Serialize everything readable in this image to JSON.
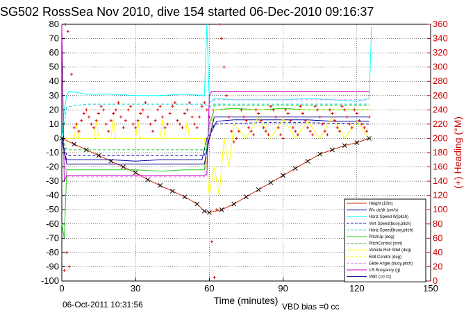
{
  "chart_data": {
    "type": "line",
    "title": "SG502 RossSea Nov 2010, dive 154 started 06-Dec-2010 09:16:37",
    "xlabel": "Time (minutes)",
    "ylabel": "",
    "ylabel_right": "(+) Heading (°M)",
    "xlim": [
      0,
      150
    ],
    "ylim": [
      -100,
      80
    ],
    "ylim_right": [
      0,
      360
    ],
    "x_ticks": [
      0,
      30,
      60,
      90,
      120,
      150
    ],
    "y_ticks": [
      -100,
      -90,
      -80,
      -70,
      -60,
      -50,
      -40,
      -30,
      -20,
      -10,
      0,
      10,
      20,
      30,
      40,
      50,
      60,
      70,
      80
    ],
    "y_right_ticks": [
      0,
      20,
      40,
      60,
      80,
      100,
      120,
      140,
      160,
      180,
      200,
      220,
      240,
      260,
      280,
      300,
      320,
      340,
      360
    ],
    "grid": true,
    "legend_position": "bottom-right",
    "footer_left": "06-Oct-2011 10:31:56",
    "footer_right": "VBD bias =0 cc",
    "colors": {
      "left_axis": "#000000",
      "right_axis": "#cc0000"
    },
    "series": [
      {
        "name": "Height (10m)",
        "color": "#cc2200",
        "style": "solid",
        "x": [
          0,
          5,
          10,
          15,
          20,
          25,
          30,
          35,
          40,
          45,
          50,
          55,
          58,
          60,
          65,
          70,
          75,
          80,
          85,
          90,
          95,
          100,
          105,
          110,
          115,
          120,
          125
        ],
        "y": [
          0,
          -4,
          -8,
          -12,
          -16,
          -20,
          -24,
          -29,
          -33,
          -37,
          -41,
          -46,
          -51,
          -52,
          -50,
          -46,
          -41,
          -36,
          -31,
          -26,
          -21,
          -16,
          -11,
          -8,
          -5,
          -3,
          0
        ]
      },
      {
        "name": "W= dz/dt (cm/s)",
        "color": "#0000aa",
        "style": "solid",
        "x": [
          0,
          1,
          2,
          10,
          20,
          30,
          40,
          50,
          57,
          59,
          61,
          63,
          70,
          80,
          90,
          100,
          110,
          120,
          125
        ],
        "y": [
          0,
          -10,
          -15,
          -15,
          -15,
          -16,
          -15,
          -15,
          -15,
          0,
          5,
          12,
          13,
          13,
          13,
          13,
          12,
          12,
          12
        ]
      },
      {
        "name": "Horiz Speed W(pitch)",
        "color": "#00ffff",
        "style": "solid",
        "x": [
          0,
          1,
          2,
          3,
          10,
          20,
          30,
          40,
          50,
          58,
          59,
          60,
          61,
          62,
          70,
          80,
          90,
          100,
          110,
          120,
          125,
          126
        ],
        "y": [
          0,
          20,
          30,
          33,
          31,
          31,
          30,
          30,
          31,
          30,
          80,
          25,
          26,
          28,
          27,
          27,
          27,
          28,
          27,
          26,
          28,
          78
        ]
      },
      {
        "name": "Vert Speed(buoy,pitch)",
        "color": "#0000aa",
        "style": "dashed",
        "x": [
          0,
          2,
          10,
          30,
          50,
          58,
          60,
          62,
          80,
          100,
          125
        ],
        "y": [
          0,
          -12,
          -12,
          -12,
          -12,
          -12,
          0,
          10,
          11,
          11,
          10
        ]
      },
      {
        "name": "Horiz Speed(buoy,pitch)",
        "color": "#00cccc",
        "style": "dashed",
        "x": [
          0,
          2,
          10,
          30,
          50,
          58,
          60,
          62,
          80,
          100,
          125
        ],
        "y": [
          0,
          22,
          24,
          24,
          24,
          24,
          22,
          24,
          24,
          24,
          24
        ]
      },
      {
        "name": "PitchUp (deg)",
        "color": "#22cc22",
        "style": "solid",
        "x": [
          0,
          1,
          2,
          10,
          20,
          30,
          40,
          50,
          58,
          60,
          62,
          70,
          80,
          90,
          100,
          110,
          120,
          125
        ],
        "y": [
          -60,
          -70,
          -22,
          -22,
          -22,
          -22,
          -23,
          -22,
          -22,
          10,
          20,
          21,
          20,
          21,
          20,
          20,
          20,
          20
        ]
      },
      {
        "name": "PitchControl (mm)",
        "color": "#22cc22",
        "style": "dashed",
        "x": [
          0,
          2,
          10,
          30,
          50,
          58,
          60,
          62,
          80,
          100,
          125
        ],
        "y": [
          0,
          -8,
          -8,
          -8,
          -8,
          -8,
          0,
          23,
          23,
          23,
          23
        ]
      },
      {
        "name": "Vehicle Roll Stbd (deg)",
        "color": "#ffff00",
        "style": "solid",
        "x": [
          0,
          5,
          6,
          7,
          8,
          13,
          14,
          15,
          16,
          20,
          21,
          22,
          23,
          30,
          31,
          32,
          33,
          40,
          41,
          42,
          43,
          50,
          51,
          52,
          53,
          58,
          60,
          62,
          64,
          66,
          68,
          70,
          75,
          80,
          85,
          90,
          95,
          100,
          105,
          110,
          115,
          120,
          125
        ],
        "y": [
          0,
          0,
          10,
          0,
          0,
          0,
          12,
          0,
          0,
          0,
          14,
          0,
          0,
          0,
          12,
          0,
          0,
          0,
          13,
          0,
          0,
          0,
          12,
          0,
          0,
          0,
          -40,
          -20,
          -40,
          0,
          -20,
          10,
          0,
          15,
          0,
          14,
          0,
          12,
          0,
          15,
          0,
          12,
          0
        ]
      },
      {
        "name": "Roll Control (deg)",
        "color": "#ffff00",
        "style": "dashed",
        "x": [
          0,
          2,
          30,
          58,
          60,
          62,
          100,
          125
        ],
        "y": [
          0,
          0,
          0,
          0,
          0,
          20,
          20,
          20
        ]
      },
      {
        "name": "Glide Angle (buoy,pitch)",
        "color": "#ee82ee",
        "style": "dashed",
        "x": [
          0,
          2,
          10,
          30,
          50,
          58,
          60,
          62,
          80,
          100,
          125
        ],
        "y": [
          0,
          -27,
          -27,
          -27,
          -27,
          -27,
          0,
          27,
          27,
          27,
          27
        ]
      },
      {
        "name": "1/5 Buoyancy (g)",
        "color": "#cc00cc",
        "style": "solid",
        "x": [
          0,
          1,
          2,
          10,
          30,
          50,
          58,
          59,
          60,
          61,
          62,
          80,
          100,
          125
        ],
        "y": [
          80,
          -30,
          -26,
          -26,
          -26,
          -26,
          -26,
          -25,
          30,
          33,
          33,
          33,
          33,
          33
        ]
      },
      {
        "name": "VBD (10 cc)",
        "color": "#000088",
        "style": "solid",
        "x": [
          0,
          2,
          10,
          30,
          50,
          58,
          60,
          62,
          80,
          100,
          125
        ],
        "y": [
          0,
          -18,
          -18,
          -18,
          -18,
          -18,
          0,
          15,
          15,
          15,
          15
        ]
      }
    ],
    "heading_series": {
      "name": "Heading",
      "color": "#dd0000",
      "marker": "+",
      "x": [
        1,
        1.5,
        2,
        2.5,
        3,
        4,
        5,
        6,
        7,
        8,
        9,
        10,
        11,
        12,
        13,
        14,
        15,
        16,
        17,
        18,
        19,
        20,
        21,
        22,
        23,
        24,
        25,
        26,
        27,
        28,
        29,
        30,
        31,
        32,
        33,
        34,
        35,
        36,
        37,
        38,
        39,
        40,
        41,
        42,
        43,
        44,
        45,
        46,
        47,
        48,
        49,
        50,
        51,
        52,
        53,
        54,
        55,
        56,
        57,
        58,
        59,
        60,
        61,
        62,
        63,
        64,
        65,
        66,
        67,
        68,
        69,
        70,
        71,
        72,
        73,
        74,
        75,
        76,
        77,
        78,
        79,
        80,
        81,
        82,
        83,
        84,
        85,
        86,
        87,
        88,
        89,
        90,
        91,
        92,
        93,
        94,
        95,
        96,
        97,
        98,
        99,
        100,
        101,
        102,
        103,
        104,
        105,
        106,
        107,
        108,
        109,
        110,
        111,
        112,
        113,
        114,
        115,
        116,
        117,
        118,
        119,
        120,
        121,
        122,
        123,
        124,
        125
      ],
      "y": [
        15,
        360,
        40,
        350,
        20,
        290,
        215,
        220,
        210,
        225,
        235,
        240,
        230,
        220,
        215,
        225,
        235,
        245,
        240,
        220,
        210,
        225,
        235,
        240,
        250,
        230,
        215,
        225,
        240,
        245,
        220,
        215,
        225,
        235,
        240,
        250,
        230,
        220,
        210,
        225,
        240,
        245,
        230,
        215,
        220,
        235,
        245,
        250,
        225,
        220,
        215,
        235,
        240,
        250,
        230,
        220,
        215,
        230,
        245,
        250,
        240,
        230,
        55,
        5,
        100,
        360,
        340,
        300,
        260,
        230,
        210,
        195,
        200,
        210,
        240,
        230,
        225,
        215,
        210,
        205,
        240,
        235,
        225,
        215,
        210,
        205,
        245,
        240,
        230,
        215,
        205,
        200,
        240,
        235,
        225,
        215,
        210,
        205,
        245,
        235,
        225,
        215,
        210,
        205,
        245,
        240,
        230,
        220,
        210,
        205,
        240,
        235,
        225,
        215,
        210,
        245,
        240,
        230,
        220,
        215,
        240,
        235,
        225,
        220,
        215,
        210,
        230
      ]
    }
  }
}
